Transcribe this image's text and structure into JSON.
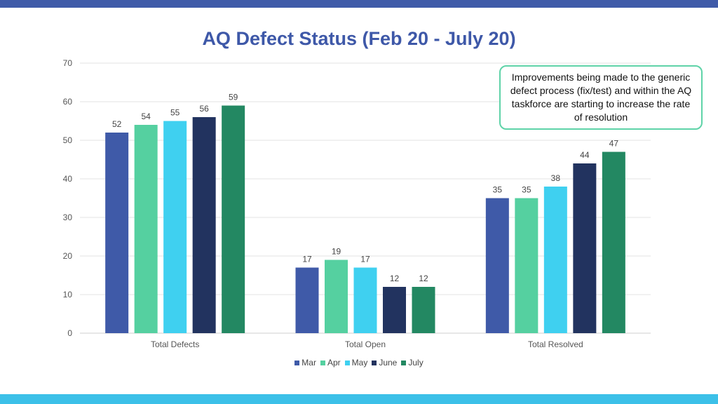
{
  "chart_data": {
    "type": "bar",
    "title": "AQ Defect Status (Feb 20 - July 20)",
    "categories": [
      "Total Defects",
      "Total Open",
      "Total Resolved"
    ],
    "series": [
      {
        "name": "Mar",
        "color": "#3f5aa8",
        "values": [
          52,
          17,
          35
        ]
      },
      {
        "name": "Apr",
        "color": "#55d0a0",
        "values": [
          54,
          19,
          35
        ]
      },
      {
        "name": "May",
        "color": "#3fd0f0",
        "values": [
          55,
          17,
          38
        ]
      },
      {
        "name": "June",
        "color": "#22335f",
        "values": [
          56,
          12,
          44
        ]
      },
      {
        "name": "July",
        "color": "#238862",
        "values": [
          59,
          12,
          47
        ]
      }
    ],
    "ylim": [
      0,
      70
    ],
    "yticks": [
      "0",
      "10",
      "20",
      "30",
      "40",
      "50",
      "60",
      "70"
    ],
    "grid": true,
    "legend": "bottom",
    "annotation": "Improvements being made to the generic defect process (fix/test) and within the AQ taskforce are starting to increase the rate of resolution"
  }
}
